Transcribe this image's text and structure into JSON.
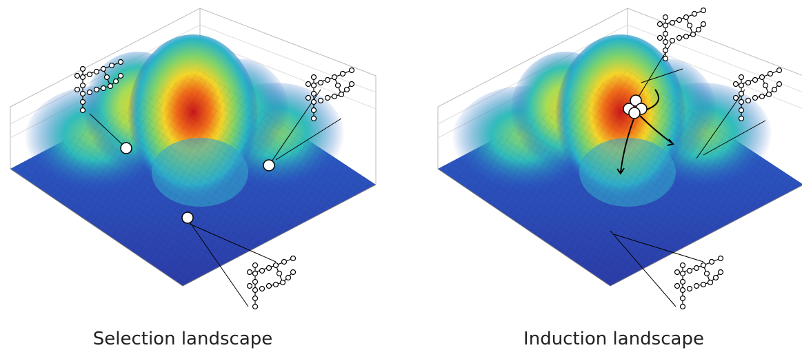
{
  "panels": [
    {
      "caption": "Selection landscape"
    },
    {
      "caption": "Induction landscape"
    }
  ]
}
